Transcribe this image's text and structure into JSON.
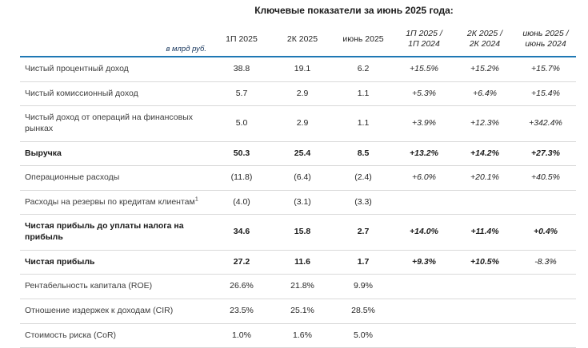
{
  "page_title": "Ключевые показатели за июнь 2025 года:",
  "colors": {
    "accent_line": "#1f78b4",
    "row_line": "#d9d9d9",
    "unit_text": "#17365d"
  },
  "table": {
    "unit_label": "в млрд руб.",
    "value_columns": [
      "1П 2025",
      "2К 2025",
      "июнь 2025"
    ],
    "change_columns": [
      {
        "line1": "1П 2025 /",
        "line2": "1П 2024"
      },
      {
        "line1": "2К 2025 /",
        "line2": "2К 2024"
      },
      {
        "line1": "июнь 2025 /",
        "line2": "июнь 2024"
      }
    ],
    "rows": [
      {
        "label": "Чистый процентный доход",
        "bold": false,
        "values": [
          "38.8",
          "19.1",
          "6.2"
        ],
        "changes": [
          "+15.5%",
          "+15.2%",
          "+15.7%"
        ],
        "light_changes": []
      },
      {
        "label": "Чистый комиссионный доход",
        "bold": false,
        "values": [
          "5.7",
          "2.9",
          "1.1"
        ],
        "changes": [
          "+5.3%",
          "+6.4%",
          "+15.4%"
        ],
        "light_changes": []
      },
      {
        "label": "Чистый доход от операций на финансовых рынках",
        "bold": false,
        "values": [
          "5.0",
          "2.9",
          "1.1"
        ],
        "changes": [
          "+3.9%",
          "+12.3%",
          "+342.4%"
        ],
        "light_changes": []
      },
      {
        "label": "Выручка",
        "bold": true,
        "values": [
          "50.3",
          "25.4",
          "8.5"
        ],
        "changes": [
          "+13.2%",
          "+14.2%",
          "+27.3%"
        ],
        "light_changes": []
      },
      {
        "label": "Операционные расходы",
        "bold": false,
        "values": [
          "(11.8)",
          "(6.4)",
          "(2.4)"
        ],
        "changes": [
          "+6.0%",
          "+20.1%",
          "+40.5%"
        ],
        "light_changes": []
      },
      {
        "label": "Расходы на резервы по кредитам клиентам",
        "superscript": "1",
        "bold": false,
        "values": [
          "(4.0)",
          "(3.1)",
          "(3.3)"
        ],
        "changes": [
          "",
          "",
          ""
        ],
        "light_changes": []
      },
      {
        "label": "Чистая прибыль до уплаты налога на прибыль",
        "bold": true,
        "values": [
          "34.6",
          "15.8",
          "2.7"
        ],
        "changes": [
          "+14.0%",
          "+11.4%",
          "+0.4%"
        ],
        "light_changes": []
      },
      {
        "label": "Чистая прибыль",
        "bold": true,
        "values": [
          "27.2",
          "11.6",
          "1.7"
        ],
        "changes": [
          "+9.3%",
          "+10.5%",
          "-8.3%"
        ],
        "light_changes": [
          2
        ]
      },
      {
        "label": "Рентабельность капитала (ROE)",
        "bold": false,
        "values": [
          "26.6%",
          "21.8%",
          "9.9%"
        ],
        "changes": [
          "",
          "",
          ""
        ],
        "light_changes": []
      },
      {
        "label": "Отношение издержек к доходам (CIR)",
        "bold": false,
        "values": [
          "23.5%",
          "25.1%",
          "28.5%"
        ],
        "changes": [
          "",
          "",
          ""
        ],
        "light_changes": []
      },
      {
        "label": "Стоимость риска (CoR)",
        "bold": false,
        "values": [
          "1.0%",
          "1.6%",
          "5.0%"
        ],
        "changes": [
          "",
          "",
          ""
        ],
        "light_changes": []
      }
    ]
  }
}
